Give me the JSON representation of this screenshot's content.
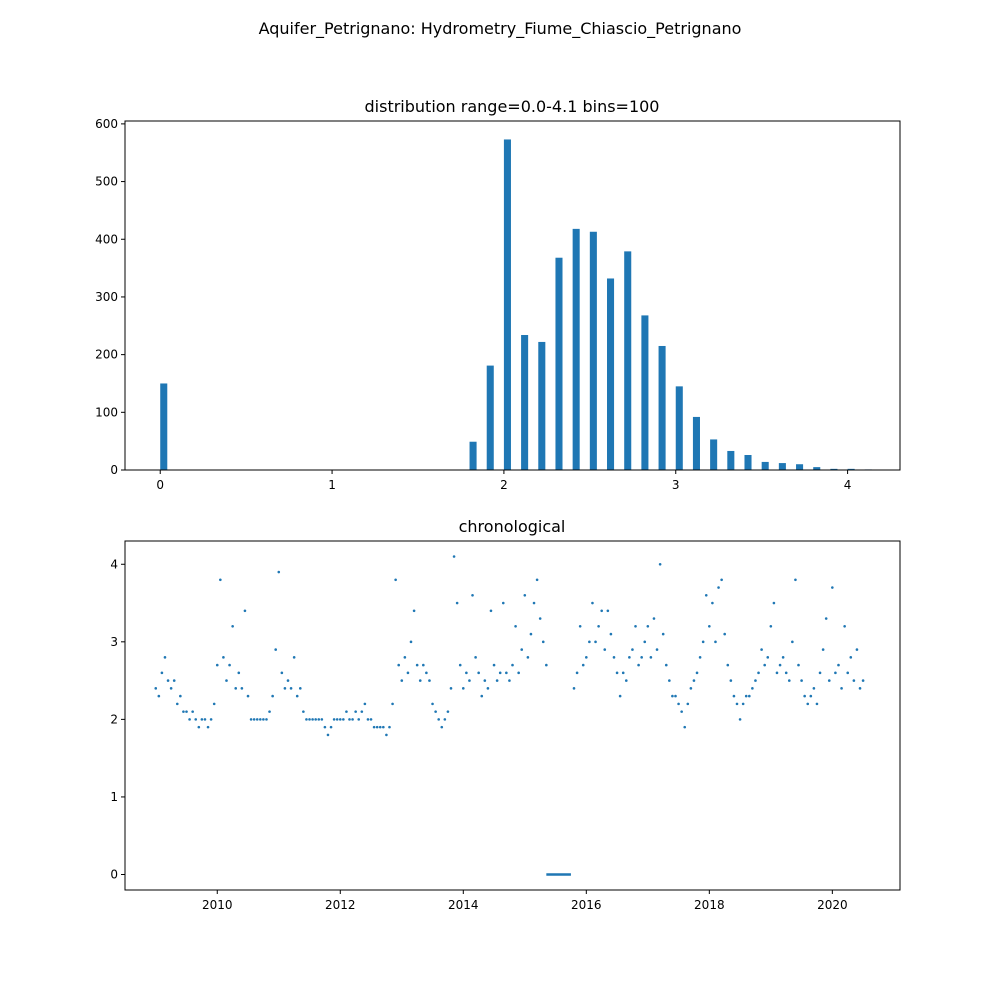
{
  "figure": {
    "suptitle": "Aquifer_Petrignano: Hydrometry_Fiume_Chiascio_Petrignano"
  },
  "colors": {
    "series": "#1f77b4",
    "axes": "#000000",
    "background": "#ffffff"
  },
  "chart_data": [
    {
      "type": "bar",
      "title": "distribution range=0.0-4.1 bins=100",
      "xlabel": "",
      "ylabel": "",
      "xlim": [
        -0.205,
        4.305
      ],
      "ylim": [
        0,
        605
      ],
      "xticks": [
        0,
        1,
        2,
        3,
        4
      ],
      "yticks": [
        0,
        100,
        200,
        300,
        400,
        500,
        600
      ],
      "grid": false,
      "bin_width": 0.041,
      "bars": [
        {
          "x": 0.0,
          "count": 150
        },
        {
          "x": 1.8,
          "count": 49
        },
        {
          "x": 1.9,
          "count": 181
        },
        {
          "x": 2.0,
          "count": 573
        },
        {
          "x": 2.1,
          "count": 234
        },
        {
          "x": 2.2,
          "count": 222
        },
        {
          "x": 2.3,
          "count": 368
        },
        {
          "x": 2.4,
          "count": 418
        },
        {
          "x": 2.5,
          "count": 413
        },
        {
          "x": 2.6,
          "count": 332
        },
        {
          "x": 2.7,
          "count": 379
        },
        {
          "x": 2.8,
          "count": 268
        },
        {
          "x": 2.9,
          "count": 215
        },
        {
          "x": 3.0,
          "count": 145
        },
        {
          "x": 3.1,
          "count": 92
        },
        {
          "x": 3.2,
          "count": 53
        },
        {
          "x": 3.3,
          "count": 33
        },
        {
          "x": 3.4,
          "count": 26
        },
        {
          "x": 3.5,
          "count": 14
        },
        {
          "x": 3.6,
          "count": 12
        },
        {
          "x": 3.7,
          "count": 10
        },
        {
          "x": 3.8,
          "count": 5
        },
        {
          "x": 3.9,
          "count": 2
        },
        {
          "x": 4.0,
          "count": 2
        },
        {
          "x": 4.1,
          "count": 1
        }
      ]
    },
    {
      "type": "scatter",
      "title": "chronological",
      "xlabel": "",
      "ylabel": "",
      "xlim": [
        2008.5,
        2021.1
      ],
      "ylim": [
        -0.2,
        4.3
      ],
      "xticks": [
        2010,
        2012,
        2014,
        2016,
        2018,
        2020
      ],
      "yticks": [
        0,
        1,
        2,
        3,
        4
      ],
      "grid": false,
      "points_x_unit": "year",
      "points_step": 0.05,
      "points": [
        [
          2009.0,
          2.4
        ],
        [
          2009.05,
          2.3
        ],
        [
          2009.1,
          2.6
        ],
        [
          2009.15,
          2.8
        ],
        [
          2009.2,
          2.5
        ],
        [
          2009.25,
          2.4
        ],
        [
          2009.3,
          2.5
        ],
        [
          2009.35,
          2.2
        ],
        [
          2009.4,
          2.3
        ],
        [
          2009.45,
          2.1
        ],
        [
          2009.5,
          2.1
        ],
        [
          2009.55,
          2.0
        ],
        [
          2009.6,
          2.1
        ],
        [
          2009.65,
          2.0
        ],
        [
          2009.7,
          1.9
        ],
        [
          2009.75,
          2.0
        ],
        [
          2009.8,
          2.0
        ],
        [
          2009.85,
          1.9
        ],
        [
          2009.9,
          2.0
        ],
        [
          2009.95,
          2.2
        ],
        [
          2010.0,
          2.7
        ],
        [
          2010.05,
          3.8
        ],
        [
          2010.1,
          2.8
        ],
        [
          2010.15,
          2.5
        ],
        [
          2010.2,
          2.7
        ],
        [
          2010.25,
          3.2
        ],
        [
          2010.3,
          2.4
        ],
        [
          2010.35,
          2.6
        ],
        [
          2010.4,
          2.4
        ],
        [
          2010.45,
          3.4
        ],
        [
          2010.5,
          2.3
        ],
        [
          2010.55,
          2.0
        ],
        [
          2010.6,
          2.0
        ],
        [
          2010.65,
          2.0
        ],
        [
          2010.7,
          2.0
        ],
        [
          2010.75,
          2.0
        ],
        [
          2010.8,
          2.0
        ],
        [
          2010.85,
          2.1
        ],
        [
          2010.9,
          2.3
        ],
        [
          2010.95,
          2.9
        ],
        [
          2011.0,
          3.9
        ],
        [
          2011.05,
          2.6
        ],
        [
          2011.1,
          2.4
        ],
        [
          2011.15,
          2.5
        ],
        [
          2011.2,
          2.4
        ],
        [
          2011.25,
          2.8
        ],
        [
          2011.3,
          2.3
        ],
        [
          2011.35,
          2.4
        ],
        [
          2011.4,
          2.1
        ],
        [
          2011.45,
          2.0
        ],
        [
          2011.5,
          2.0
        ],
        [
          2011.55,
          2.0
        ],
        [
          2011.6,
          2.0
        ],
        [
          2011.65,
          2.0
        ],
        [
          2011.7,
          2.0
        ],
        [
          2011.75,
          1.9
        ],
        [
          2011.8,
          1.8
        ],
        [
          2011.85,
          1.9
        ],
        [
          2011.9,
          2.0
        ],
        [
          2011.95,
          2.0
        ],
        [
          2012.0,
          2.0
        ],
        [
          2012.05,
          2.0
        ],
        [
          2012.1,
          2.1
        ],
        [
          2012.15,
          2.0
        ],
        [
          2012.2,
          2.0
        ],
        [
          2012.25,
          2.1
        ],
        [
          2012.3,
          2.0
        ],
        [
          2012.35,
          2.1
        ],
        [
          2012.4,
          2.2
        ],
        [
          2012.45,
          2.0
        ],
        [
          2012.5,
          2.0
        ],
        [
          2012.55,
          1.9
        ],
        [
          2012.6,
          1.9
        ],
        [
          2012.65,
          1.9
        ],
        [
          2012.7,
          1.9
        ],
        [
          2012.75,
          1.8
        ],
        [
          2012.8,
          1.9
        ],
        [
          2012.85,
          2.2
        ],
        [
          2012.9,
          3.8
        ],
        [
          2012.95,
          2.7
        ],
        [
          2013.0,
          2.5
        ],
        [
          2013.05,
          2.8
        ],
        [
          2013.1,
          2.6
        ],
        [
          2013.15,
          3.0
        ],
        [
          2013.2,
          3.4
        ],
        [
          2013.25,
          2.7
        ],
        [
          2013.3,
          2.5
        ],
        [
          2013.35,
          2.7
        ],
        [
          2013.4,
          2.6
        ],
        [
          2013.45,
          2.5
        ],
        [
          2013.5,
          2.2
        ],
        [
          2013.55,
          2.1
        ],
        [
          2013.6,
          2.0
        ],
        [
          2013.65,
          1.9
        ],
        [
          2013.7,
          2.0
        ],
        [
          2013.75,
          2.1
        ],
        [
          2013.8,
          2.4
        ],
        [
          2013.85,
          4.1
        ],
        [
          2013.9,
          3.5
        ],
        [
          2013.95,
          2.7
        ],
        [
          2014.0,
          2.4
        ],
        [
          2014.05,
          2.6
        ],
        [
          2014.1,
          2.5
        ],
        [
          2014.15,
          3.6
        ],
        [
          2014.2,
          2.8
        ],
        [
          2014.25,
          2.6
        ],
        [
          2014.3,
          2.3
        ],
        [
          2014.35,
          2.5
        ],
        [
          2014.4,
          2.4
        ],
        [
          2014.45,
          3.4
        ],
        [
          2014.5,
          2.7
        ],
        [
          2014.55,
          2.5
        ],
        [
          2014.6,
          2.6
        ],
        [
          2014.65,
          3.5
        ],
        [
          2014.7,
          2.6
        ],
        [
          2014.75,
          2.5
        ],
        [
          2014.8,
          2.7
        ],
        [
          2014.85,
          3.2
        ],
        [
          2014.9,
          2.6
        ],
        [
          2014.95,
          2.9
        ],
        [
          2015.0,
          3.6
        ],
        [
          2015.05,
          2.8
        ],
        [
          2015.1,
          3.1
        ],
        [
          2015.15,
          3.5
        ],
        [
          2015.2,
          3.8
        ],
        [
          2015.25,
          3.3
        ],
        [
          2015.3,
          3.0
        ],
        [
          2015.35,
          2.7
        ],
        [
          2015.8,
          2.4
        ],
        [
          2015.85,
          2.6
        ],
        [
          2015.9,
          3.2
        ],
        [
          2015.95,
          2.7
        ],
        [
          2016.0,
          2.8
        ],
        [
          2016.05,
          3.0
        ],
        [
          2016.1,
          3.5
        ],
        [
          2016.15,
          3.0
        ],
        [
          2016.2,
          3.2
        ],
        [
          2016.25,
          3.4
        ],
        [
          2016.3,
          2.9
        ],
        [
          2016.35,
          3.4
        ],
        [
          2016.4,
          3.1
        ],
        [
          2016.45,
          2.8
        ],
        [
          2016.5,
          2.6
        ],
        [
          2016.55,
          2.3
        ],
        [
          2016.6,
          2.6
        ],
        [
          2016.65,
          2.5
        ],
        [
          2016.7,
          2.8
        ],
        [
          2016.75,
          2.9
        ],
        [
          2016.8,
          3.2
        ],
        [
          2016.85,
          2.7
        ],
        [
          2016.9,
          2.8
        ],
        [
          2016.95,
          3.0
        ],
        [
          2017.0,
          3.2
        ],
        [
          2017.05,
          2.8
        ],
        [
          2017.1,
          3.3
        ],
        [
          2017.15,
          2.9
        ],
        [
          2017.2,
          4.0
        ],
        [
          2017.25,
          3.1
        ],
        [
          2017.3,
          2.7
        ],
        [
          2017.35,
          2.5
        ],
        [
          2017.4,
          2.3
        ],
        [
          2017.45,
          2.3
        ],
        [
          2017.5,
          2.2
        ],
        [
          2017.55,
          2.1
        ],
        [
          2017.6,
          1.9
        ],
        [
          2017.65,
          2.2
        ],
        [
          2017.7,
          2.4
        ],
        [
          2017.75,
          2.5
        ],
        [
          2017.8,
          2.6
        ],
        [
          2017.85,
          2.8
        ],
        [
          2017.9,
          3.0
        ],
        [
          2017.95,
          3.6
        ],
        [
          2018.0,
          3.2
        ],
        [
          2018.05,
          3.5
        ],
        [
          2018.1,
          3.0
        ],
        [
          2018.15,
          3.7
        ],
        [
          2018.2,
          3.8
        ],
        [
          2018.25,
          3.1
        ],
        [
          2018.3,
          2.7
        ],
        [
          2018.35,
          2.5
        ],
        [
          2018.4,
          2.3
        ],
        [
          2018.45,
          2.2
        ],
        [
          2018.5,
          2.0
        ],
        [
          2018.55,
          2.2
        ],
        [
          2018.6,
          2.3
        ],
        [
          2018.65,
          2.3
        ],
        [
          2018.7,
          2.4
        ],
        [
          2018.75,
          2.5
        ],
        [
          2018.8,
          2.6
        ],
        [
          2018.85,
          2.9
        ],
        [
          2018.9,
          2.7
        ],
        [
          2018.95,
          2.8
        ],
        [
          2019.0,
          3.2
        ],
        [
          2019.05,
          3.5
        ],
        [
          2019.1,
          2.6
        ],
        [
          2019.15,
          2.7
        ],
        [
          2019.2,
          2.8
        ],
        [
          2019.25,
          2.6
        ],
        [
          2019.3,
          2.5
        ],
        [
          2019.35,
          3.0
        ],
        [
          2019.4,
          3.8
        ],
        [
          2019.45,
          2.7
        ],
        [
          2019.5,
          2.5
        ],
        [
          2019.55,
          2.3
        ],
        [
          2019.6,
          2.2
        ],
        [
          2019.65,
          2.3
        ],
        [
          2019.7,
          2.4
        ],
        [
          2019.75,
          2.2
        ],
        [
          2019.8,
          2.6
        ],
        [
          2019.85,
          2.9
        ],
        [
          2019.9,
          3.3
        ],
        [
          2019.95,
          2.5
        ],
        [
          2020.0,
          3.7
        ],
        [
          2020.05,
          2.6
        ],
        [
          2020.1,
          2.7
        ],
        [
          2020.15,
          2.4
        ],
        [
          2020.2,
          3.2
        ],
        [
          2020.25,
          2.6
        ],
        [
          2020.3,
          2.8
        ],
        [
          2020.35,
          2.5
        ],
        [
          2020.4,
          2.9
        ],
        [
          2020.45,
          2.4
        ],
        [
          2020.5,
          2.5
        ]
      ],
      "zero_segment": {
        "x_start": 2015.35,
        "x_end": 2015.75,
        "y": 0
      }
    }
  ]
}
